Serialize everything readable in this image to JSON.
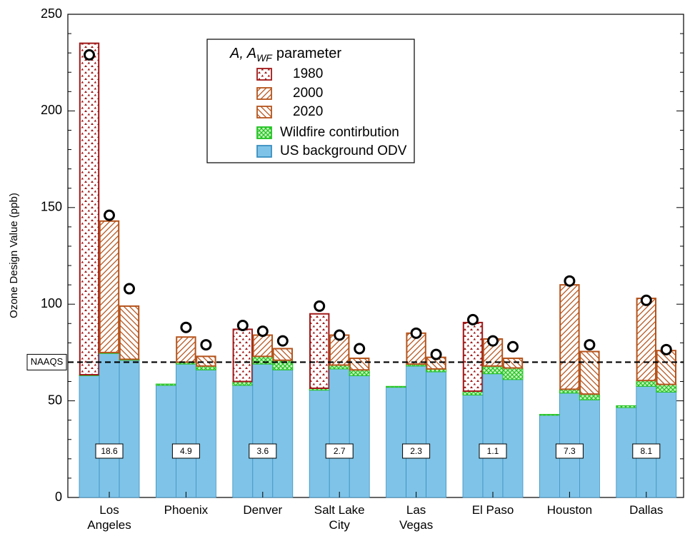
{
  "chart_data": {
    "type": "grouped-stacked-bar",
    "y_label": "Ozone Design Value (ppb)",
    "categories": [
      "Los Angeles",
      "Phoenix",
      "Denver",
      "Salt Lake City",
      "Las Vegas",
      "El Paso",
      "Houston",
      "Dallas"
    ],
    "legend_title": {
      "main": "A, A",
      "subscript": "WF",
      "rest": "parameter"
    },
    "series": [
      {
        "name": "1980",
        "color": "#a01818",
        "pattern": "dots",
        "background": [
          63,
          58,
          58,
          55.5,
          57,
          53,
          42.5,
          46.5
        ],
        "wildfire": [
          0.5,
          0.7,
          2,
          1,
          0.5,
          2,
          0.5,
          1
        ],
        "parameter": [
          171.5,
          null,
          27,
          38.5,
          null,
          35.5,
          null,
          null
        ],
        "observed": [
          229,
          null,
          89,
          99,
          null,
          92,
          null,
          null
        ]
      },
      {
        "name": "2000",
        "color": "#b5541c",
        "pattern": "hatch-forward",
        "background": [
          74.5,
          69,
          69,
          66.5,
          68,
          64,
          54,
          57.5
        ],
        "wildfire": [
          0.5,
          1,
          4,
          2,
          1,
          4,
          2,
          3
        ],
        "parameter": [
          68,
          13,
          11,
          15.5,
          16,
          14,
          54,
          42.5
        ],
        "observed": [
          146,
          88,
          86,
          84,
          85,
          81,
          112,
          102
        ]
      },
      {
        "name": "2020",
        "color": "#b5541c",
        "pattern": "hatch-back",
        "background": [
          71,
          66,
          66,
          63,
          65,
          61,
          50.5,
          54.5
        ],
        "wildfire": [
          0.5,
          2,
          5,
          3,
          1.5,
          6,
          3,
          4
        ],
        "parameter": [
          27.5,
          5,
          6,
          6,
          6,
          5,
          22,
          17.5
        ],
        "observed": [
          108,
          79,
          81,
          77,
          74,
          78,
          79,
          76.5
        ]
      }
    ],
    "components": [
      {
        "name": "Wildfire contirbution",
        "color": "#22c322",
        "pattern": "crosshatch"
      },
      {
        "name": "US background ODV",
        "color": "#7fc4e8"
      }
    ],
    "box_values": [
      18.6,
      4.9,
      3.6,
      2.7,
      2.3,
      1.1,
      7.3,
      8.1
    ],
    "reference_line": {
      "value": 70,
      "label": "NAAQS"
    },
    "ylim": [
      0,
      250
    ],
    "yticks": [
      0,
      50,
      100,
      150,
      200,
      250
    ],
    "yticks_minor": [
      10,
      20,
      30,
      40,
      60,
      70,
      80,
      90,
      110,
      120,
      130,
      140,
      160,
      170,
      180,
      190,
      210,
      220,
      230,
      240
    ]
  }
}
